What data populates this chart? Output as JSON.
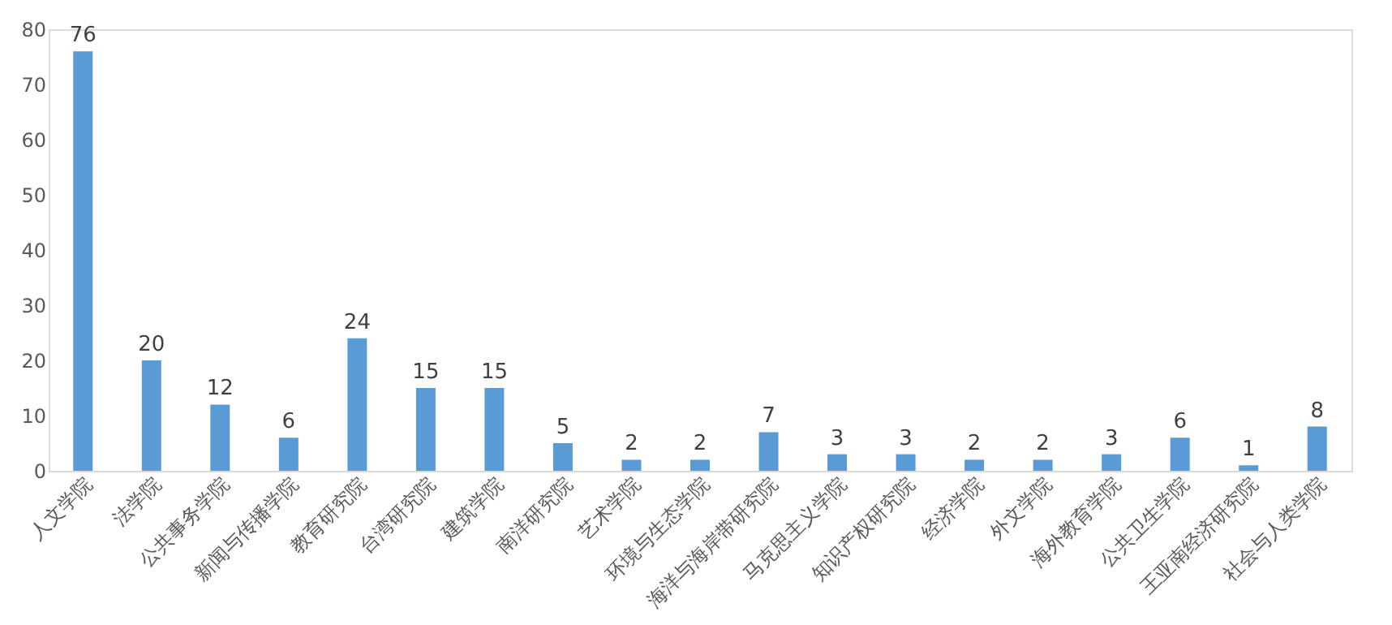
{
  "chart_data": {
    "type": "bar",
    "categories": [
      "人文学院",
      "法学院",
      "公共事务学院",
      "新闻与传播学院",
      "教育研究院",
      "台湾研究院",
      "建筑学院",
      "南洋研究院",
      "艺术学院",
      "环境与生态学院",
      "海洋与海岸带研究院",
      "马克思主义学院",
      "知识产权研究院",
      "经济学院",
      "外文学院",
      "海外教育学院",
      "公共卫生学院",
      "王亚南经济研究院",
      "社会与人类学院"
    ],
    "values": [
      76,
      20,
      12,
      6,
      24,
      15,
      15,
      5,
      2,
      2,
      7,
      3,
      3,
      2,
      2,
      3,
      6,
      1,
      8
    ],
    "color": "#5b9bd5",
    "ylim": [
      0,
      80
    ],
    "yticks": [
      0,
      10,
      20,
      30,
      40,
      50,
      60,
      70,
      80
    ],
    "data_labels": true
  }
}
